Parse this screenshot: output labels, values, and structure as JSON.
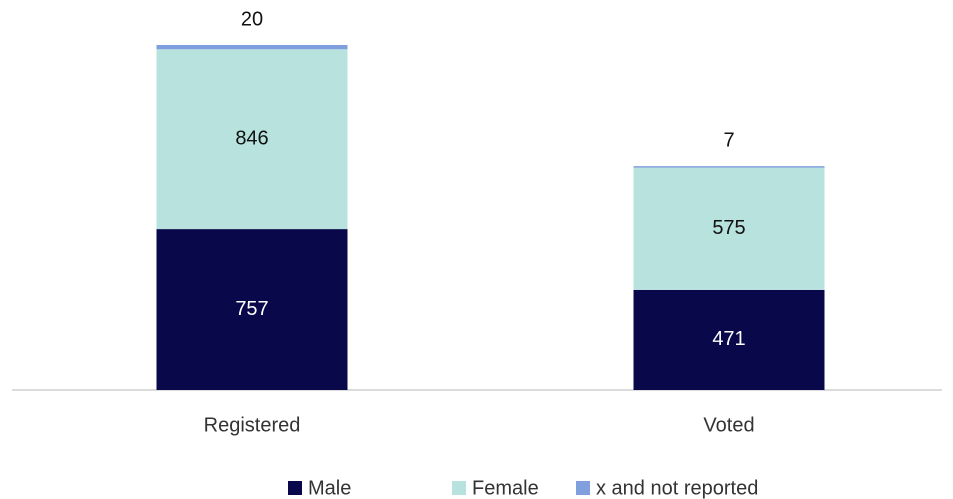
{
  "chart_data": {
    "type": "stacked_bar",
    "categories": [
      "Registered",
      "Voted"
    ],
    "series": [
      {
        "name": "Male",
        "color": "#08084a",
        "values": [
          757,
          471
        ]
      },
      {
        "name": "Female",
        "color": "#b8e2de",
        "values": [
          846,
          575
        ]
      },
      {
        "name": "x and not reported",
        "color": "#7f9fdf",
        "values": [
          20,
          7
        ]
      }
    ]
  }
}
